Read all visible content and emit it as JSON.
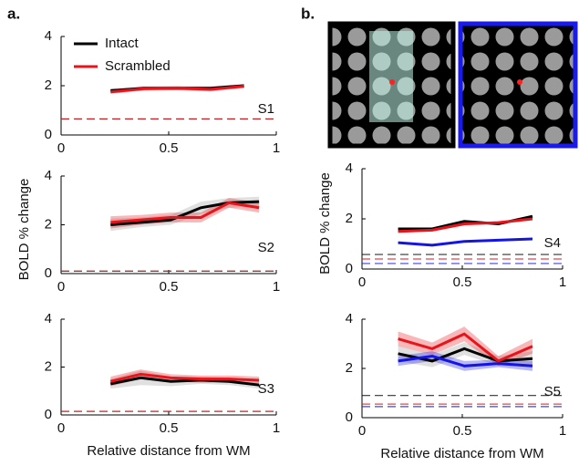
{
  "panel_labels": [
    "a.",
    "b."
  ],
  "chart_data": [
    {
      "type": "line",
      "label": "S1",
      "legend": "upper left",
      "x": [
        0.23,
        0.385,
        0.54,
        0.695,
        0.85
      ],
      "series": [
        {
          "name": "Intact",
          "color": "#000000",
          "values": [
            1.8,
            1.9,
            1.9,
            1.9,
            2.0
          ],
          "errors": [
            0.08,
            0.08,
            0.08,
            0.08,
            0.08
          ]
        },
        {
          "name": "Scrambled",
          "color": "#e8141b",
          "values": [
            1.75,
            1.88,
            1.9,
            1.85,
            1.98
          ],
          "errors": [
            0.08,
            0.08,
            0.08,
            0.08,
            0.08
          ]
        }
      ],
      "baselines": [
        {
          "color": "#000000",
          "value": 0.65
        },
        {
          "color": "#e8141b",
          "value": 0.65
        }
      ],
      "xlim": [
        0,
        1
      ],
      "ylim": [
        0,
        4
      ],
      "xticks": [
        0,
        0.5,
        1
      ],
      "yticks": [
        0,
        2,
        4
      ]
    },
    {
      "type": "line",
      "label": "S2",
      "y_label": "BOLD % change",
      "x": [
        0.23,
        0.37,
        0.51,
        0.65,
        0.78,
        0.92
      ],
      "series": [
        {
          "name": "Intact",
          "color": "#000000",
          "values": [
            2.0,
            2.1,
            2.2,
            2.7,
            2.9,
            2.95
          ],
          "errors": [
            0.25,
            0.2,
            0.2,
            0.25,
            0.2,
            0.2
          ]
        },
        {
          "name": "Scrambled",
          "color": "#e8141b",
          "values": [
            2.1,
            2.2,
            2.3,
            2.3,
            2.9,
            2.7
          ],
          "errors": [
            0.25,
            0.2,
            0.2,
            0.2,
            0.2,
            0.2
          ]
        }
      ],
      "baselines": [
        {
          "color": "#000000",
          "value": 0.1
        },
        {
          "color": "#e8141b",
          "value": 0.1
        }
      ],
      "xlim": [
        0,
        1
      ],
      "ylim": [
        0,
        4
      ],
      "xticks": [
        0,
        0.5,
        1
      ],
      "yticks": [
        0,
        2,
        4
      ]
    },
    {
      "type": "line",
      "label": "S3",
      "x_label": "Relative distance from WM",
      "x": [
        0.23,
        0.37,
        0.51,
        0.65,
        0.78,
        0.92
      ],
      "series": [
        {
          "name": "Intact",
          "color": "#000000",
          "values": [
            1.3,
            1.55,
            1.4,
            1.45,
            1.4,
            1.25
          ],
          "errors": [
            0.2,
            0.3,
            0.2,
            0.15,
            0.15,
            0.15
          ]
        },
        {
          "name": "Scrambled",
          "color": "#e8141b",
          "values": [
            1.4,
            1.7,
            1.55,
            1.5,
            1.5,
            1.45
          ],
          "errors": [
            0.2,
            0.2,
            0.15,
            0.15,
            0.15,
            0.15
          ]
        }
      ],
      "baselines": [
        {
          "color": "#000000",
          "value": 0.15
        },
        {
          "color": "#e8141b",
          "value": 0.15
        }
      ],
      "xlim": [
        0,
        1
      ],
      "ylim": [
        0,
        4
      ],
      "xticks": [
        0,
        0.5,
        1
      ],
      "yticks": [
        0,
        2,
        4
      ]
    },
    {
      "type": "line",
      "label": "S4",
      "y_label": "BOLD % change",
      "x": [
        0.18,
        0.35,
        0.51,
        0.68,
        0.85
      ],
      "series": [
        {
          "name": "Intact",
          "color": "#000000",
          "values": [
            1.6,
            1.6,
            1.9,
            1.8,
            2.1
          ],
          "errors": [
            0.05,
            0.05,
            0.05,
            0.05,
            0.05
          ]
        },
        {
          "name": "Scrambled",
          "color": "#e8141b",
          "values": [
            1.5,
            1.55,
            1.8,
            1.85,
            2.0
          ],
          "errors": [
            0.05,
            0.05,
            0.05,
            0.05,
            0.05
          ]
        },
        {
          "color": "#1414e6",
          "values": [
            1.05,
            0.95,
            1.1,
            1.15,
            1.2
          ],
          "errors": [
            0.04,
            0.04,
            0.04,
            0.04,
            0.04
          ]
        }
      ],
      "baselines": [
        {
          "color": "#000000",
          "value": 0.58
        },
        {
          "color": "#e8141b",
          "value": 0.4
        },
        {
          "color": "#1414e6",
          "value": 0.22
        }
      ],
      "xlim": [
        0,
        1
      ],
      "ylim": [
        0,
        4
      ],
      "xticks": [
        0,
        0.5,
        1
      ],
      "yticks": [
        0,
        2,
        4
      ]
    },
    {
      "type": "line",
      "label": "S5",
      "x_label": "Relative distance from WM",
      "x": [
        0.18,
        0.35,
        0.51,
        0.68,
        0.85
      ],
      "series": [
        {
          "name": "Intact",
          "color": "#000000",
          "values": [
            2.6,
            2.3,
            2.8,
            2.3,
            2.4
          ],
          "errors": [
            0.3,
            0.25,
            0.25,
            0.2,
            0.3
          ]
        },
        {
          "name": "Scrambled",
          "color": "#e8141b",
          "values": [
            3.2,
            2.8,
            3.4,
            2.3,
            2.9
          ],
          "errors": [
            0.3,
            0.25,
            0.3,
            0.2,
            0.3
          ]
        },
        {
          "color": "#1414e6",
          "values": [
            2.3,
            2.5,
            2.1,
            2.2,
            2.1
          ],
          "errors": [
            0.2,
            0.2,
            0.2,
            0.15,
            0.2
          ]
        }
      ],
      "baselines": [
        {
          "color": "#000000",
          "value": 0.9
        },
        {
          "color": "#e8141b",
          "value": 0.55
        },
        {
          "color": "#1414e6",
          "value": 0.45
        }
      ],
      "xlim": [
        0,
        1
      ],
      "ylim": [
        0,
        4
      ],
      "xticks": [
        0,
        0.5,
        1
      ],
      "yticks": [
        0,
        2,
        4
      ]
    }
  ]
}
